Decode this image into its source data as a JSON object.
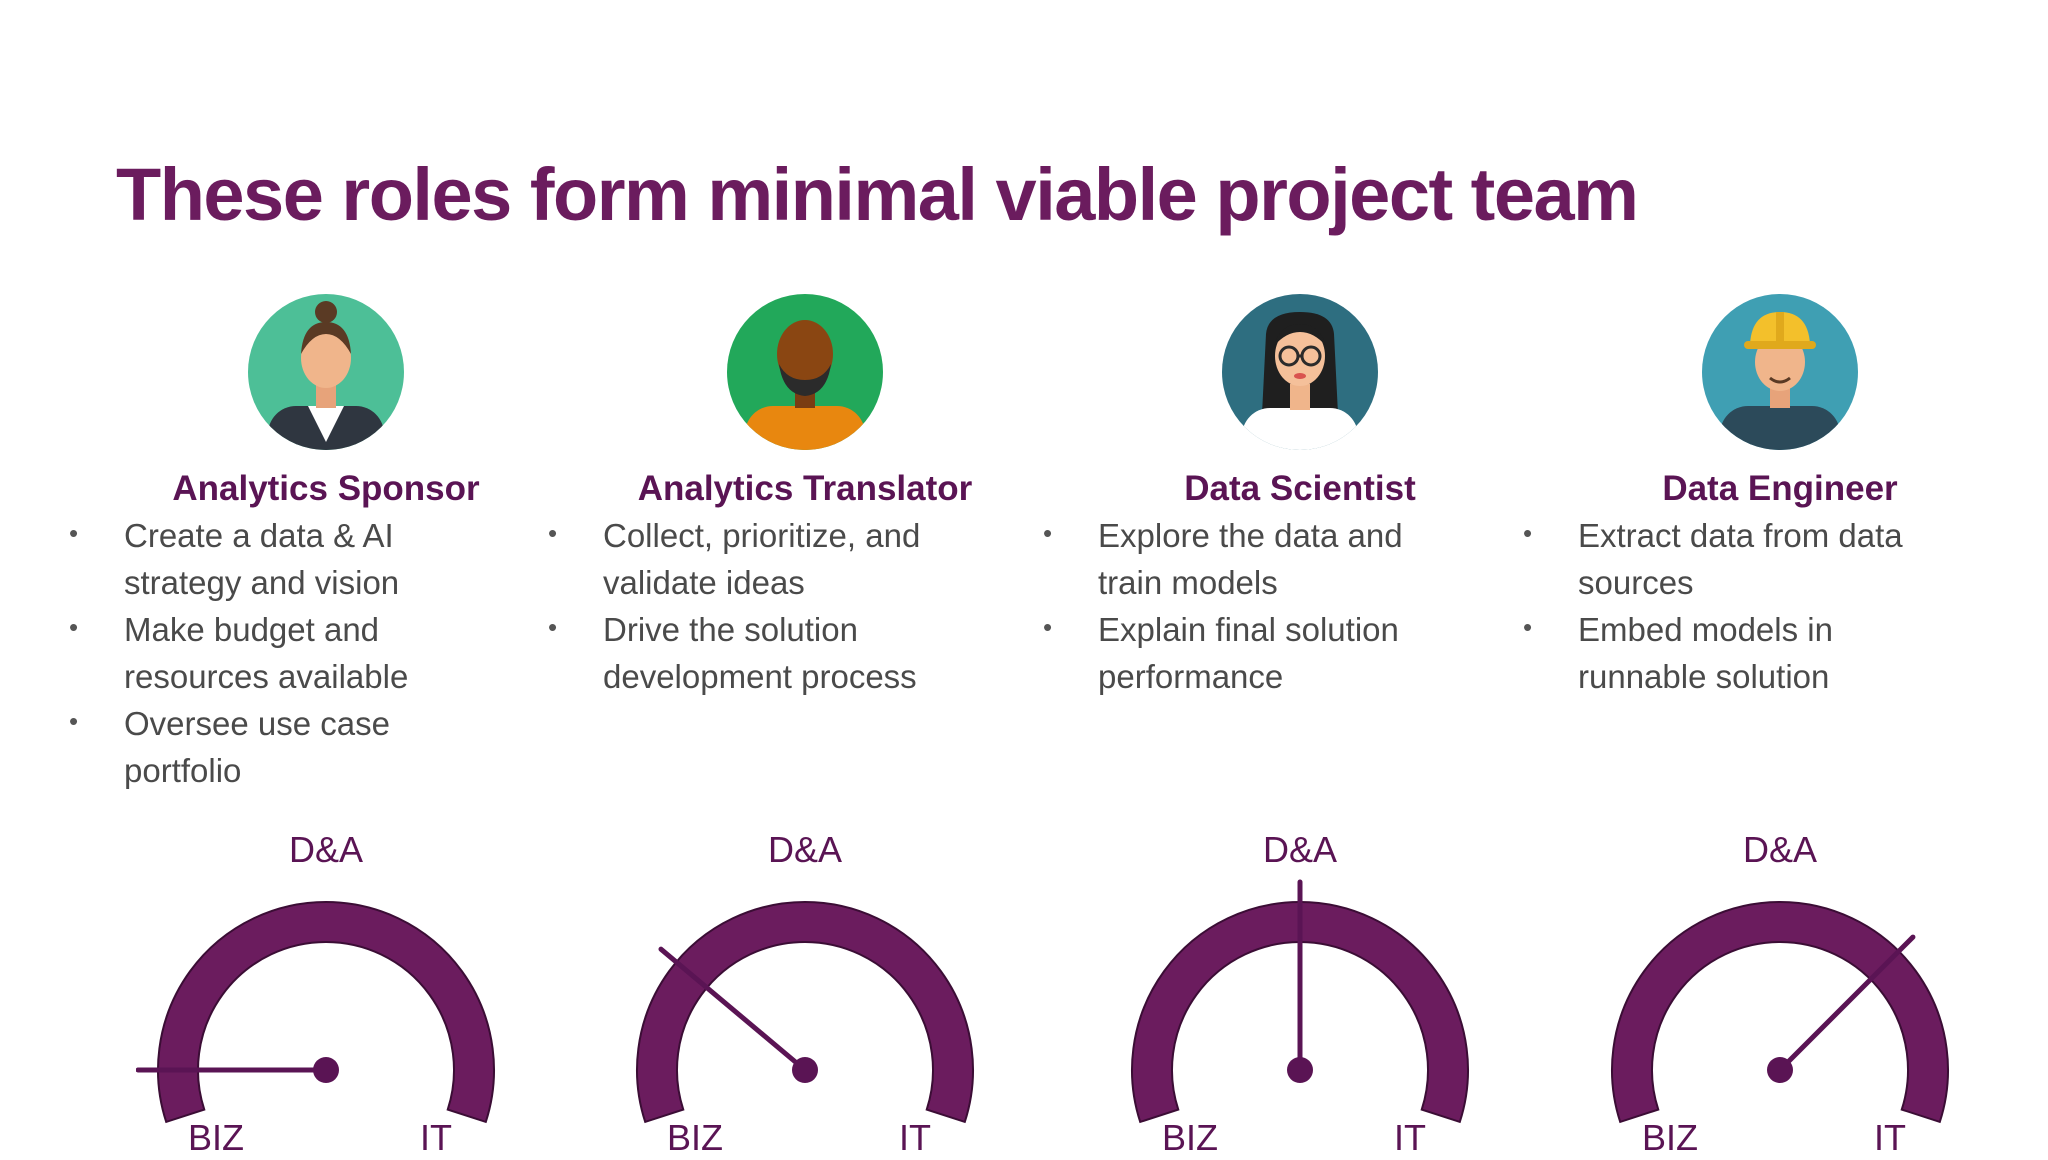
{
  "slide": {
    "title": "These roles form minimal viable project team"
  },
  "gauge_labels": {
    "top": "D&A",
    "left": "BIZ",
    "right": "IT"
  },
  "colors": {
    "accent": "#6b1c5e",
    "gauge_fill": "#6b1c5e"
  },
  "roles": [
    {
      "name": "Analytics Sponsor",
      "avatar_icon": "businesswoman-avatar-icon",
      "bullets": [
        [
          "Create a data & AI",
          "strategy and vision"
        ],
        [
          "Make budget and",
          "resources available"
        ],
        [
          "Oversee use case",
          "portfolio"
        ]
      ],
      "gauge_value_deg": 180
    },
    {
      "name": "Analytics Translator",
      "avatar_icon": "bearded-man-avatar-icon",
      "bullets": [
        [
          "Collect, prioritize, and",
          "validate ideas"
        ],
        [
          "Drive the solution",
          "development process"
        ]
      ],
      "gauge_value_deg": 140
    },
    {
      "name": "Data Scientist",
      "avatar_icon": "woman-with-glasses-avatar-icon",
      "bullets": [
        [
          "Explore the data and",
          "train models"
        ],
        [
          "Explain final solution",
          "performance"
        ]
      ],
      "gauge_value_deg": 90
    },
    {
      "name": "Data Engineer",
      "avatar_icon": "engineer-hardhat-avatar-icon",
      "bullets": [
        [
          "Extract data from data",
          "sources"
        ],
        [
          "Embed models in",
          "runnable solution"
        ]
      ],
      "gauge_value_deg": 45
    }
  ]
}
